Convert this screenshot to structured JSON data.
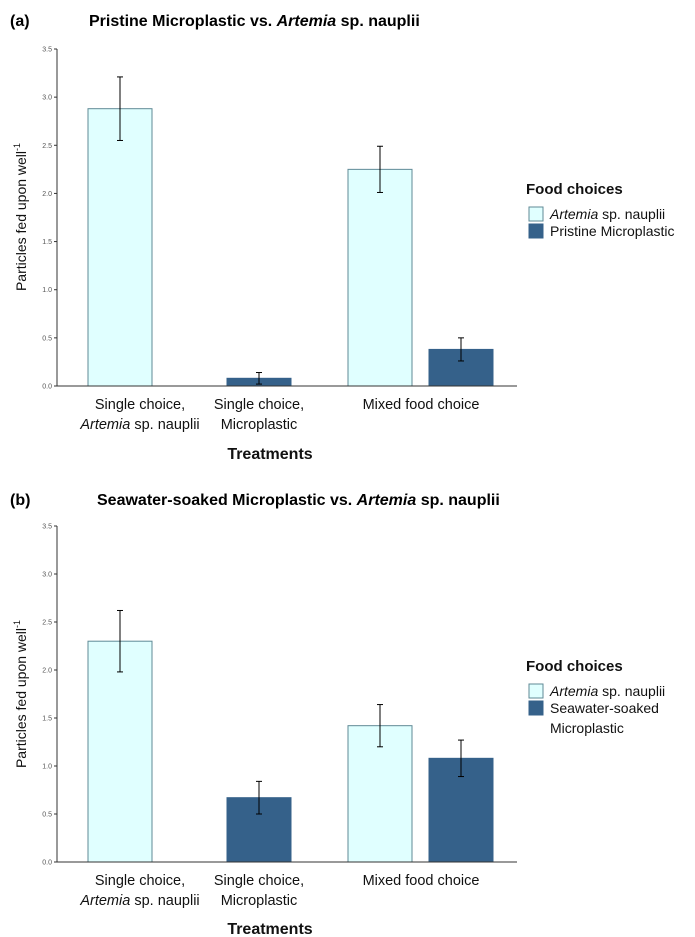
{
  "colors": {
    "artemia_fill": "#e0ffff",
    "artemia_stroke": "#5f8a96",
    "plastic_fill": "#35618a",
    "axis": "#333333",
    "error_bar": "#000000"
  },
  "legend_title": "Food choices",
  "xlabel": "Treatments",
  "ylabel_main": "Particles fed upon well",
  "ylabel_sup": "-1",
  "chart_data": [
    {
      "type": "bar",
      "panel_tag": "(a)",
      "title_parts": [
        "Pristine Microplastic vs. ",
        "Artemia",
        " sp. nauplii"
      ],
      "categories": [
        {
          "line1": "Single choice,",
          "line2_italic": "Artemia",
          "line2_rest": " sp. nauplii"
        },
        {
          "line1": "Single choice,",
          "line2_italic": "",
          "line2_rest": "Microplastic"
        },
        {
          "line1": "Mixed food choice",
          "line2_italic": "",
          "line2_rest": ""
        }
      ],
      "series": [
        {
          "key": "artemia",
          "legend_italic": "Artemia",
          "legend_rest": " sp. nauplii",
          "legend_rest2": "",
          "values": [
            2.88,
            null,
            2.25
          ],
          "errors": [
            0.33,
            null,
            0.24
          ]
        },
        {
          "key": "plastic",
          "legend_italic": "",
          "legend_rest": "Pristine Microplastic",
          "legend_rest2": "",
          "values": [
            null,
            0.08,
            0.38
          ],
          "errors": [
            null,
            0.06,
            0.12
          ]
        }
      ],
      "ylim": [
        0,
        3.5
      ],
      "yticks": [
        "0.0",
        "0.5",
        "1.0",
        "1.5",
        "2.0",
        "2.5",
        "3.0",
        "3.5"
      ],
      "xlabel": "Treatments",
      "legend_placement": "right"
    },
    {
      "type": "bar",
      "panel_tag": "(b)",
      "title_parts": [
        "Seawater-soaked Microplastic vs. ",
        "Artemia",
        " sp. nauplii"
      ],
      "categories": [
        {
          "line1": "Single choice,",
          "line2_italic": "Artemia",
          "line2_rest": " sp. nauplii"
        },
        {
          "line1": "Single choice,",
          "line2_italic": "",
          "line2_rest": "Microplastic"
        },
        {
          "line1": "Mixed food choice",
          "line2_italic": "",
          "line2_rest": ""
        }
      ],
      "series": [
        {
          "key": "artemia",
          "legend_italic": "Artemia",
          "legend_rest": " sp. nauplii",
          "legend_rest2": "",
          "values": [
            2.3,
            null,
            1.42
          ],
          "errors": [
            0.32,
            null,
            0.22
          ]
        },
        {
          "key": "plastic",
          "legend_italic": "",
          "legend_rest": "Seawater-soaked",
          "legend_rest2": "Microplastic",
          "values": [
            null,
            0.67,
            1.08
          ],
          "errors": [
            null,
            0.17,
            0.19
          ]
        }
      ],
      "ylim": [
        0,
        3.5
      ],
      "yticks": [
        "0.0",
        "0.5",
        "1.0",
        "1.5",
        "2.0",
        "2.5",
        "3.0",
        "3.5"
      ],
      "xlabel": "Treatments",
      "legend_placement": "right"
    }
  ]
}
